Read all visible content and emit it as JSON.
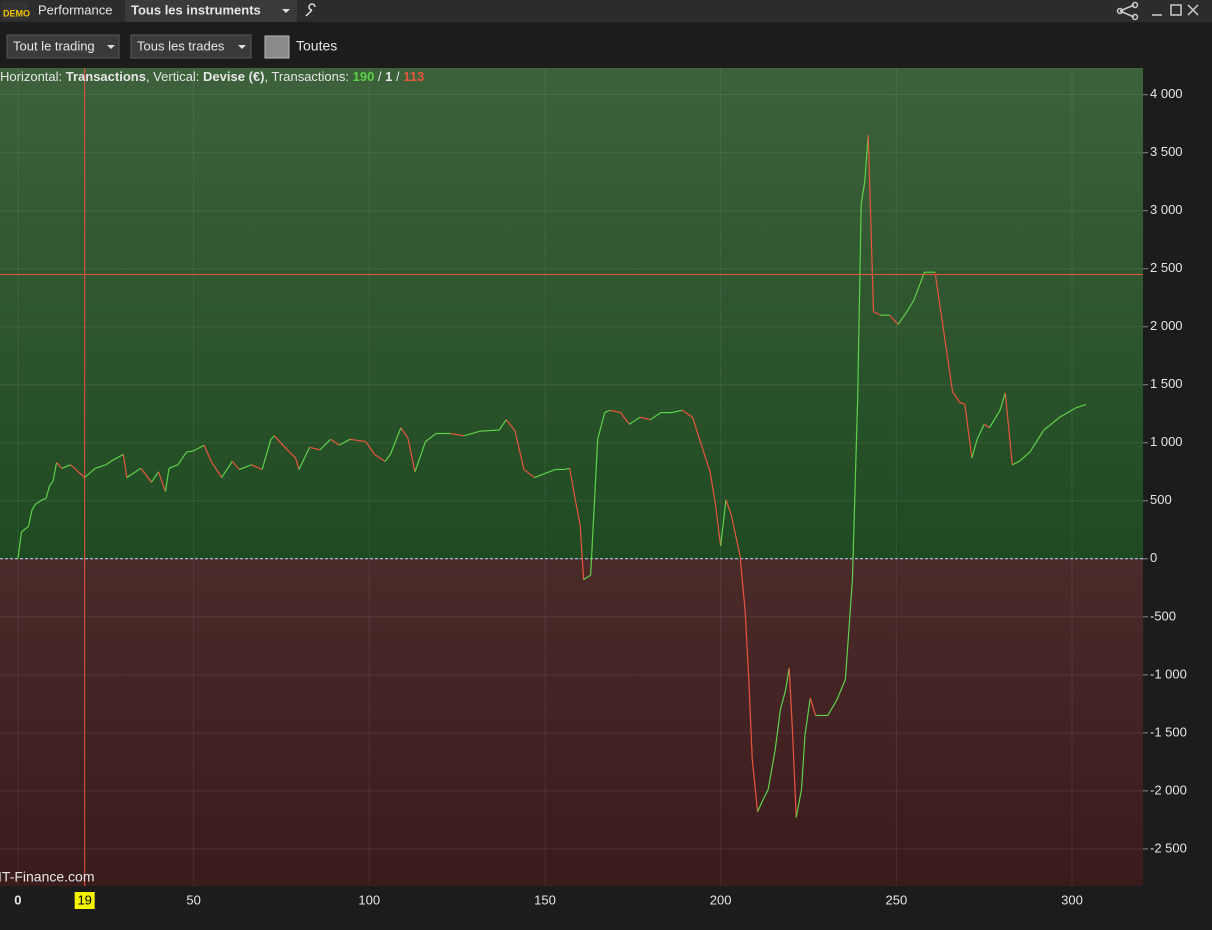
{
  "toolbar": {
    "badge": "DEMO",
    "tab": "Performance",
    "instrument": "Tous les instruments",
    "filter_trading": "Tout le trading",
    "filter_trades": "Tous les trades",
    "period": "Toutes"
  },
  "chart_data": {
    "type": "line",
    "info": {
      "h_label": "Horizontal: ",
      "h_value": "Transactions",
      "v_label": ", Vertical: ",
      "v_value": "Devise (€)",
      "t_label": ", Transactions: ",
      "wins": 190,
      "sep1": " / ",
      "even": 1,
      "sep2": " / ",
      "losses": 113
    },
    "watermark": "IT-Finance.com",
    "x": [
      0,
      1,
      3,
      4,
      5,
      7,
      8,
      9,
      10,
      11,
      12.5,
      15,
      19,
      22,
      25,
      27,
      30,
      31,
      35,
      38,
      40,
      42,
      43,
      45.5,
      48,
      50,
      53,
      55,
      58,
      61,
      63,
      66.5,
      69.5,
      72,
      73,
      76,
      79,
      80,
      83,
      86,
      89,
      91.5,
      94.5,
      99,
      101.5,
      104.5,
      106,
      109,
      111,
      113,
      116,
      119,
      123,
      127,
      131.5,
      137,
      139,
      141.5,
      144,
      147,
      153,
      155.5,
      157,
      157.5,
      158.5,
      160,
      161,
      163,
      165,
      167,
      168.5,
      171.5,
      174,
      177,
      180,
      183,
      186,
      189,
      192,
      194,
      197,
      198.5,
      200,
      201.5,
      203,
      205.5,
      207,
      208,
      209,
      210.5,
      212,
      213.5,
      215.5,
      217,
      218.5,
      219.5,
      220.5,
      221.5,
      223,
      224,
      225.5,
      227,
      230.5,
      233,
      235.5,
      237.5,
      239,
      240,
      241,
      242,
      243.5,
      245.5,
      248,
      250.5,
      253,
      255,
      258,
      261,
      263,
      266,
      268,
      269.5,
      271.5,
      273,
      275,
      276.5,
      279.5,
      281,
      283,
      285,
      288,
      292,
      296.5,
      301,
      304
    ],
    "values": [
      0,
      230,
      280,
      420,
      470,
      510,
      520,
      630,
      670,
      830,
      780,
      810,
      700,
      780,
      810,
      850,
      900,
      700,
      780,
      660,
      750,
      580,
      780,
      810,
      920,
      930,
      980,
      840,
      700,
      840,
      770,
      810,
      770,
      1030,
      1060,
      960,
      870,
      770,
      960,
      940,
      1030,
      980,
      1030,
      1010,
      900,
      840,
      900,
      1130,
      1040,
      750,
      1010,
      1080,
      1080,
      1060,
      1100,
      1110,
      1200,
      1100,
      770,
      700,
      770,
      770,
      780,
      700,
      530,
      290,
      -180,
      -140,
      1030,
      1260,
      1280,
      1260,
      1160,
      1220,
      1200,
      1260,
      1260,
      1280,
      1220,
      1030,
      750,
      470,
      110,
      510,
      380,
      30,
      -460,
      -1040,
      -1730,
      -2180,
      -2080,
      -1990,
      -1650,
      -1300,
      -1130,
      -940,
      -1520,
      -2230,
      -1990,
      -1520,
      -1200,
      -1350,
      -1350,
      -1220,
      -1040,
      -180,
      1390,
      3060,
      3250,
      3650,
      2130,
      2100,
      2100,
      2020,
      2130,
      2230,
      2470,
      2470,
      2060,
      1440,
      1350,
      1330,
      870,
      1030,
      1160,
      1130,
      1280,
      1430,
      810,
      840,
      920,
      1110,
      1220,
      1300,
      1330
    ],
    "up_color": "#5fd14a",
    "down_color": "#e8553e",
    "xlim": [
      -5.1,
      320.2
    ],
    "xticks": [
      0,
      50,
      100,
      150,
      200,
      250,
      300
    ],
    "ylim": [
      -2820,
      4230
    ],
    "yticks": [
      {
        "value": -2500,
        "label": "-2 500"
      },
      {
        "value": -2000,
        "label": "-2 000"
      },
      {
        "value": -1500,
        "label": "-1 500"
      },
      {
        "value": -1000,
        "label": "-1 000"
      },
      -500,
      0,
      500,
      {
        "value": 1000,
        "label": "1 000"
      },
      {
        "value": 1500,
        "label": "1 500"
      },
      {
        "value": 2000,
        "label": "2 000"
      },
      {
        "value": 2500,
        "label": "2 500"
      },
      {
        "value": 3000,
        "label": "3 000"
      },
      {
        "value": 3500,
        "label": "3 500"
      },
      {
        "value": 4000,
        "label": "4 000"
      }
    ],
    "grid": true,
    "cursor_x": 19,
    "cursor_y": 2450
  }
}
